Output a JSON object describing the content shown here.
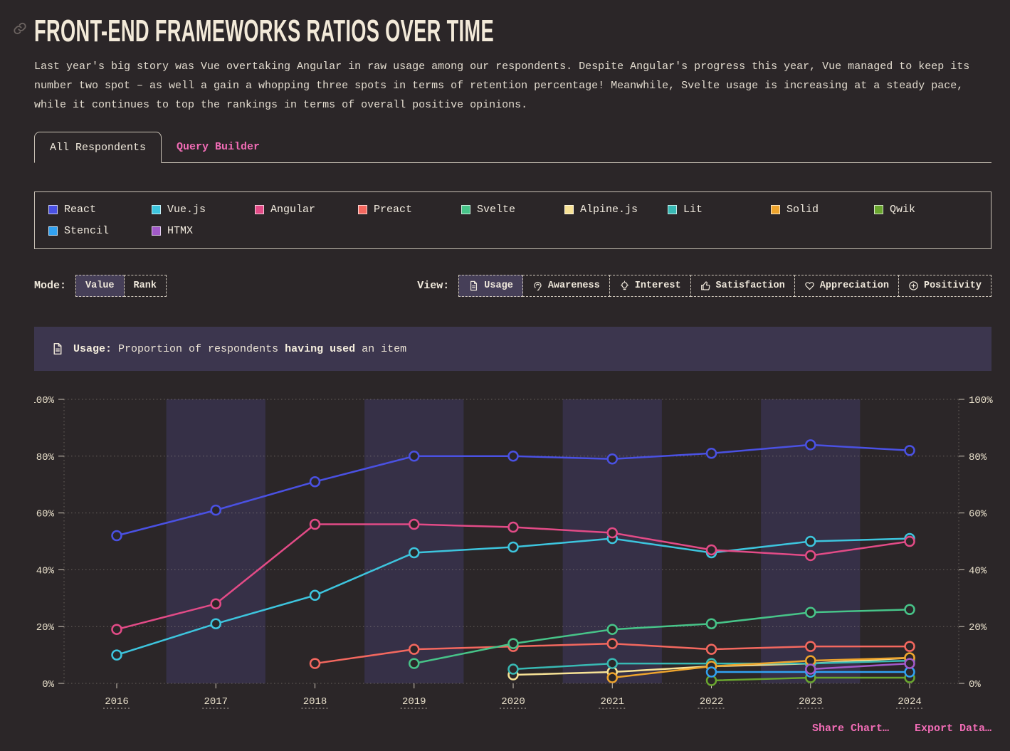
{
  "header": {
    "title": "FRONT-END FRAMEWORKS RATIOS OVER TIME",
    "intro": "Last year's big story was Vue overtaking Angular in raw usage among our respondents. Despite Angular's progress this year, Vue managed to keep its number two spot – as well a gain a whopping three spots in terms of retention percentage! Meanwhile, Svelte usage is increasing at a steady pace, while it continues to top the rankings in terms of overall positive opinions."
  },
  "tabs": [
    {
      "label": "All Respondents",
      "active": true
    },
    {
      "label": "Query Builder",
      "active": false
    }
  ],
  "controls": {
    "mode_label": "Mode:",
    "modes": [
      {
        "label": "Value",
        "active": true
      },
      {
        "label": "Rank",
        "active": false
      }
    ],
    "view_label": "View:",
    "views": [
      {
        "label": "Usage",
        "icon": "file-text-icon",
        "active": true
      },
      {
        "label": "Awareness",
        "icon": "ear-icon",
        "active": false
      },
      {
        "label": "Interest",
        "icon": "lightbulb-icon",
        "active": false
      },
      {
        "label": "Satisfaction",
        "icon": "thumbs-up-icon",
        "active": false
      },
      {
        "label": "Appreciation",
        "icon": "heart-icon",
        "active": false
      },
      {
        "label": "Positivity",
        "icon": "plus-circle-icon",
        "active": false
      }
    ]
  },
  "banner": {
    "label": "Usage:",
    "text_before": "Proportion of respondents",
    "text_bold": "having used",
    "text_after": "an item"
  },
  "footer": {
    "share_label": "Share Chart…",
    "export_label": "Export Data…"
  },
  "colors": {
    "background": "#2b2628",
    "accent_pink": "#f06cb5",
    "banner_bg": "#3c364e",
    "active_button_bg": "#463f58",
    "border_cream": "#c9c1b5"
  },
  "chart_data": {
    "type": "line",
    "title": "Front-end frameworks usage ratios over time",
    "xlabel": "",
    "ylabel": "Proportion of respondents having used an item (%)",
    "x": [
      2016,
      2017,
      2018,
      2019,
      2020,
      2021,
      2022,
      2023,
      2024
    ],
    "ylim": [
      0,
      100
    ],
    "yticks": [
      0,
      20,
      40,
      60,
      80,
      100
    ],
    "y_tick_format": "percent",
    "grid": "horizontal dotted, y-axis labeled on both left and right",
    "legend_position": "top box, two rows",
    "banded_years": [
      2017,
      2019,
      2021,
      2023
    ],
    "band_color": "#363047",
    "point_fill": "#2b2628",
    "series": [
      {
        "name": "React",
        "color": "#4a51e3",
        "values": [
          52,
          61,
          71,
          80,
          80,
          79,
          81,
          84,
          82
        ]
      },
      {
        "name": "Vue.js",
        "color": "#3dc5de",
        "values": [
          10,
          21,
          31,
          46,
          48,
          51,
          46,
          50,
          51
        ]
      },
      {
        "name": "Angular",
        "color": "#e34b87",
        "values": [
          19,
          28,
          56,
          56,
          55,
          53,
          47,
          45,
          50
        ]
      },
      {
        "name": "Preact",
        "color": "#f4685f",
        "values": [
          null,
          null,
          7,
          12,
          13,
          14,
          12,
          13,
          13
        ]
      },
      {
        "name": "Svelte",
        "color": "#47c489",
        "values": [
          null,
          null,
          null,
          7,
          14,
          19,
          21,
          25,
          26
        ]
      },
      {
        "name": "Alpine.js",
        "color": "#f7e296",
        "values": [
          null,
          null,
          null,
          null,
          3,
          4,
          6,
          7,
          9
        ]
      },
      {
        "name": "Lit",
        "color": "#38b9b4",
        "values": [
          null,
          null,
          null,
          null,
          5,
          7,
          7,
          7,
          8
        ]
      },
      {
        "name": "Solid",
        "color": "#eea42d",
        "values": [
          null,
          null,
          null,
          null,
          null,
          2,
          6,
          8,
          9
        ]
      },
      {
        "name": "Qwik",
        "color": "#6aa62f",
        "values": [
          null,
          null,
          null,
          null,
          null,
          null,
          1,
          2,
          2
        ]
      },
      {
        "name": "Stencil",
        "color": "#31a2f2",
        "values": [
          null,
          null,
          null,
          null,
          null,
          null,
          4,
          4,
          4
        ]
      },
      {
        "name": "HTMX",
        "color": "#a25ac9",
        "values": [
          null,
          null,
          null,
          null,
          null,
          null,
          null,
          5,
          7
        ]
      }
    ]
  }
}
